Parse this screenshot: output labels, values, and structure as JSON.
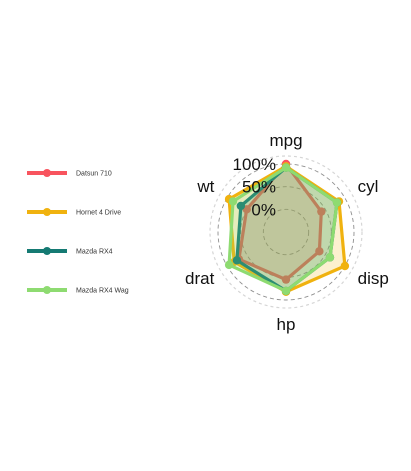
{
  "chart_data": {
    "type": "radar",
    "axes": [
      "mpg",
      "cyl",
      "disp",
      "hp",
      "drat",
      "wt"
    ],
    "grid_labels": [
      "0%",
      "50%",
      "100%"
    ],
    "grid_levels": [
      0,
      0.5,
      1
    ],
    "range": [
      -0.5,
      1.0
    ],
    "series": [
      {
        "name": "Datsun 710",
        "color": "#F8545E",
        "values": [
          1.0,
          0.4,
          0.35,
          0.55,
          0.7,
          0.5
        ]
      },
      {
        "name": "Hornet 4 Drive",
        "color": "#F0B20F",
        "values": [
          0.95,
          0.85,
          1.0,
          0.82,
          0.82,
          0.95
        ]
      },
      {
        "name": "Mazda RX4",
        "color": "#157A73",
        "values": [
          0.92,
          0.8,
          0.62,
          0.8,
          0.75,
          0.65
        ]
      },
      {
        "name": "Mazda RX4 Wag",
        "color": "#8EDB71",
        "values": [
          0.92,
          0.8,
          0.62,
          0.8,
          0.95,
          0.85
        ]
      }
    ],
    "legend_position": "left",
    "grid": true
  }
}
